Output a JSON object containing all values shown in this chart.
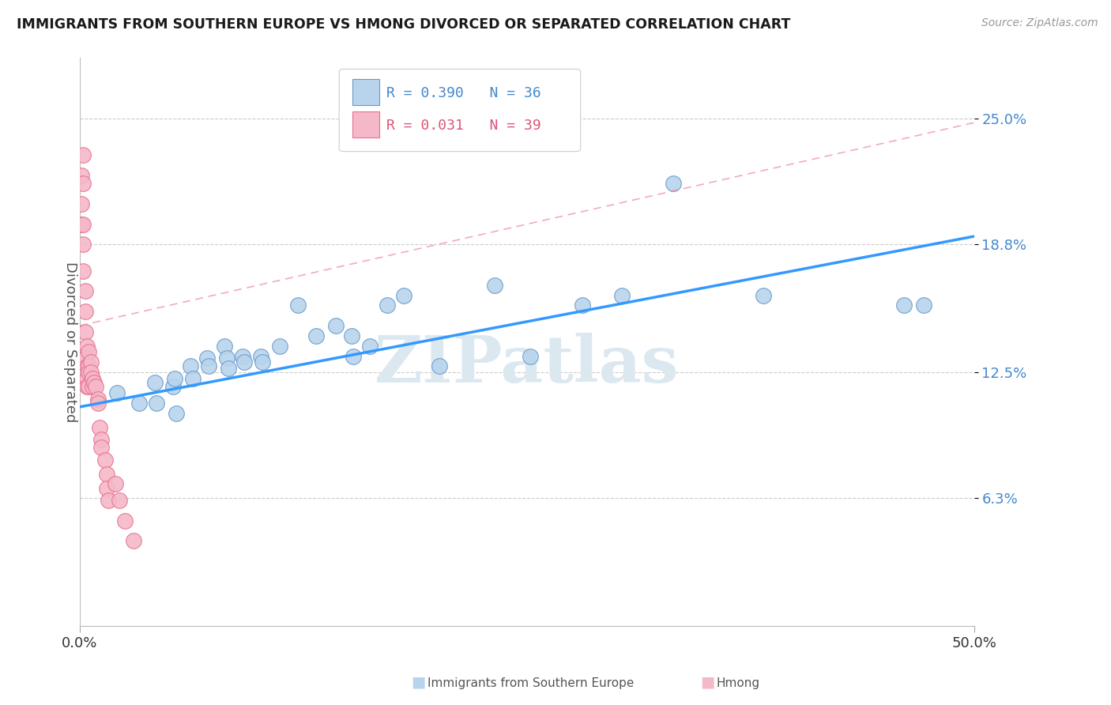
{
  "title": "IMMIGRANTS FROM SOUTHERN EUROPE VS HMONG DIVORCED OR SEPARATED CORRELATION CHART",
  "source": "Source: ZipAtlas.com",
  "ylabel": "Divorced or Separated",
  "xlim": [
    0.0,
    0.5
  ],
  "ylim": [
    0.0,
    0.28
  ],
  "ytick_positions": [
    0.063,
    0.125,
    0.188,
    0.25
  ],
  "ytick_labels": [
    "6.3%",
    "12.5%",
    "18.8%",
    "25.0%"
  ],
  "blue_R": 0.39,
  "blue_N": 36,
  "pink_R": 0.031,
  "pink_N": 39,
  "blue_color": "#b8d4ec",
  "blue_edge": "#6699cc",
  "pink_color": "#f4b8c8",
  "pink_edge": "#e87090",
  "blue_trend_color": "#3399ff",
  "pink_trend_color": "#ee8899",
  "grid_color": "#cccccc",
  "watermark": "ZIPatlas",
  "watermark_color": "#dce8f0",
  "blue_x": [
    0.021,
    0.033,
    0.042,
    0.043,
    0.052,
    0.053,
    0.054,
    0.062,
    0.063,
    0.071,
    0.072,
    0.081,
    0.082,
    0.083,
    0.091,
    0.092,
    0.101,
    0.102,
    0.112,
    0.122,
    0.132,
    0.143,
    0.152,
    0.153,
    0.162,
    0.172,
    0.181,
    0.201,
    0.232,
    0.252,
    0.281,
    0.303,
    0.332,
    0.382,
    0.461,
    0.472
  ],
  "blue_y": [
    0.115,
    0.11,
    0.12,
    0.11,
    0.118,
    0.122,
    0.105,
    0.128,
    0.122,
    0.132,
    0.128,
    0.138,
    0.132,
    0.127,
    0.133,
    0.13,
    0.133,
    0.13,
    0.138,
    0.158,
    0.143,
    0.148,
    0.143,
    0.133,
    0.138,
    0.158,
    0.163,
    0.128,
    0.168,
    0.133,
    0.158,
    0.163,
    0.218,
    0.163,
    0.158,
    0.158
  ],
  "pink_x": [
    0.001,
    0.001,
    0.001,
    0.002,
    0.002,
    0.002,
    0.002,
    0.002,
    0.003,
    0.003,
    0.003,
    0.003,
    0.004,
    0.004,
    0.004,
    0.004,
    0.005,
    0.005,
    0.005,
    0.005,
    0.006,
    0.006,
    0.007,
    0.007,
    0.008,
    0.009,
    0.01,
    0.01,
    0.011,
    0.012,
    0.012,
    0.014,
    0.015,
    0.015,
    0.016,
    0.02,
    0.022,
    0.025,
    0.03
  ],
  "pink_y": [
    0.208,
    0.222,
    0.198,
    0.232,
    0.218,
    0.188,
    0.198,
    0.175,
    0.165,
    0.155,
    0.145,
    0.132,
    0.138,
    0.128,
    0.122,
    0.118,
    0.135,
    0.128,
    0.125,
    0.118,
    0.13,
    0.125,
    0.122,
    0.118,
    0.12,
    0.118,
    0.112,
    0.11,
    0.098,
    0.092,
    0.088,
    0.082,
    0.075,
    0.068,
    0.062,
    0.07,
    0.062,
    0.052,
    0.042
  ],
  "blue_trend_x": [
    0.0,
    0.5
  ],
  "blue_trend_y": [
    0.108,
    0.192
  ],
  "pink_trend_x": [
    0.0,
    0.5
  ],
  "pink_trend_y": [
    0.148,
    0.248
  ]
}
